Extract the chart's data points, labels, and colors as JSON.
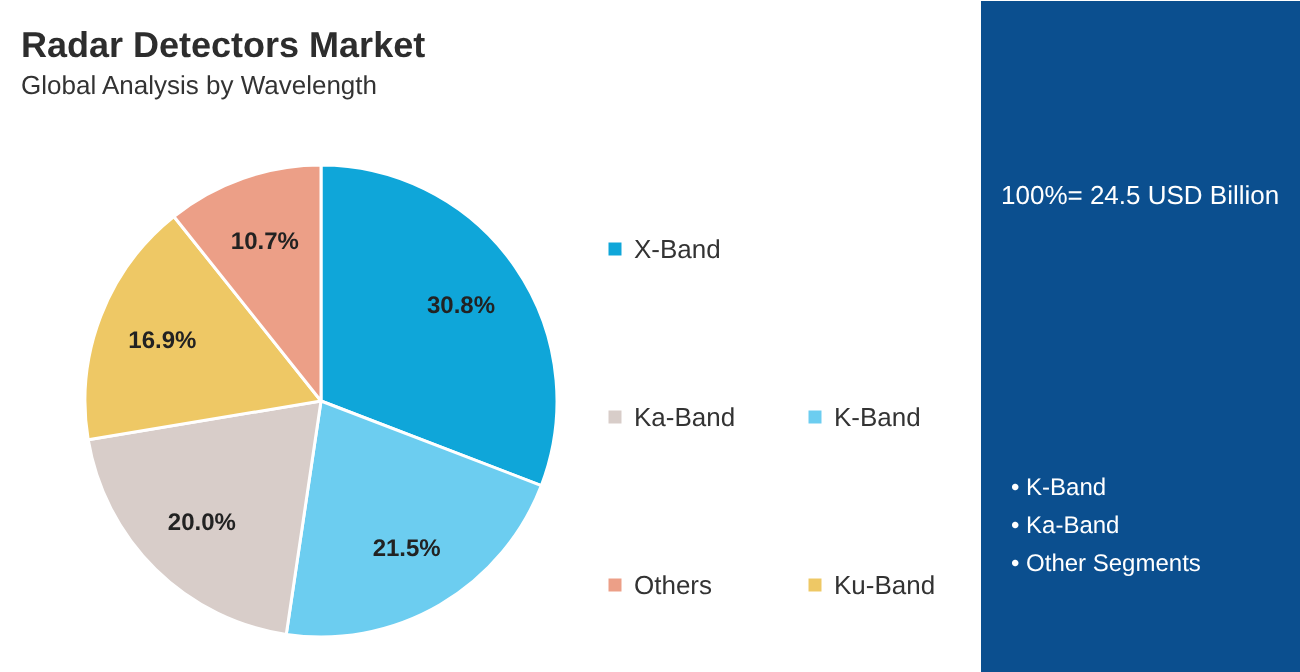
{
  "chart_data": {
    "type": "pie",
    "title": "Radar Detectors Market",
    "subtitle": "Global Analysis by Wavelength",
    "categories": [
      "X-Band",
      "K-Band",
      "Ka-Band",
      "Ku-Band",
      "Others"
    ],
    "values": [
      30.8,
      21.5,
      20.0,
      16.9,
      10.7
    ],
    "value_labels": [
      "30.8%",
      "21.5%",
      "20.0%",
      "16.9%",
      "10.7%"
    ],
    "colors": [
      "#0fa6d9",
      "#6ccdf0",
      "#d8cdc9",
      "#eec865",
      "#ec9f87"
    ],
    "legend": "right",
    "annotations": [
      "100%= 24.5 USD Billion",
      "• K-Band",
      "• Ka-Band",
      "• Other Segments"
    ]
  }
}
